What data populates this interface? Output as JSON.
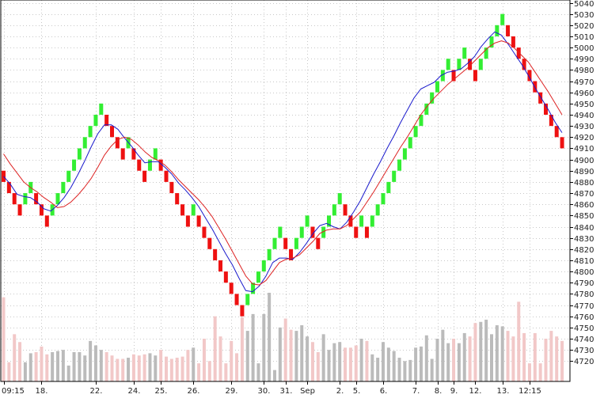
{
  "chart_data": {
    "type": "renko",
    "title": "",
    "xlabel": "",
    "ylabel": "",
    "ylim": [
      4710,
      5040
    ],
    "y_ticks": [
      4720,
      4730,
      4740,
      4750,
      4760,
      4770,
      4780,
      4790,
      4800,
      4810,
      4820,
      4830,
      4840,
      4850,
      4860,
      4870,
      4880,
      4890,
      4900,
      4910,
      4920,
      4930,
      4940,
      4950,
      4960,
      4970,
      4980,
      4990,
      5000,
      5010,
      5020,
      5030,
      5040
    ],
    "x_tick_labels": [
      "09:15",
      "18.",
      "22.",
      "24.",
      "25.",
      "26.",
      "29.",
      "30.",
      "31.",
      "Sep",
      "2.",
      "5.",
      "6.",
      "7.",
      "8.",
      "9.",
      "12.",
      "13.",
      "12:15"
    ],
    "x_tick_bricks": [
      0,
      7,
      17,
      24,
      29,
      35,
      42,
      48,
      52,
      56,
      62,
      65,
      70,
      76,
      80,
      83,
      87,
      92,
      97
    ],
    "grid": true,
    "brick_size": 10,
    "colors": {
      "up": "#33ee33",
      "down": "#ee1111",
      "ma_fast": "#1a1acc",
      "ma_slow": "#dd2222",
      "volume": "#bbbbbb",
      "volume_light": "#f2c8c8"
    },
    "series": [
      {
        "type": "renko",
        "brick_bottoms": [
          4880,
          4870,
          4860,
          4850,
          4860,
          4870,
          4860,
          4850,
          4840,
          4850,
          4860,
          4870,
          4880,
          4890,
          4900,
          4910,
          4920,
          4930,
          4940,
          4930,
          4920,
          4910,
          4900,
          4910,
          4900,
          4890,
          4880,
          4890,
          4900,
          4890,
          4880,
          4870,
          4860,
          4850,
          4840,
          4850,
          4840,
          4830,
          4820,
          4810,
          4800,
          4790,
          4780,
          4770,
          4760,
          4770,
          4780,
          4790,
          4800,
          4810,
          4820,
          4830,
          4820,
          4810,
          4820,
          4830,
          4840,
          4830,
          4820,
          4830,
          4840,
          4850,
          4860,
          4850,
          4840,
          4830,
          4840,
          4830,
          4840,
          4850,
          4860,
          4870,
          4880,
          4890,
          4900,
          4910,
          4920,
          4930,
          4940,
          4950,
          4960,
          4970,
          4980,
          4970,
          4980,
          4990,
          4980,
          4970,
          4980,
          4990,
          5000,
          5010,
          5020,
          5010,
          5000,
          4990,
          4980,
          4970,
          4960,
          4950,
          4940,
          4930,
          4920,
          4910
        ]
      },
      {
        "type": "line",
        "name": "",
        "color": "#1a1acc",
        "values": [
          4885,
          4878,
          4869,
          4867,
          4866,
          4862,
          4856,
          4854,
          4859,
          4866,
          4875,
          4886,
          4898,
          4911,
          4923,
          4931,
          4931,
          4927,
          4919,
          4912,
          4904,
          4897,
          4898,
          4898,
          4893,
          4887,
          4879,
          4873,
          4866,
          4858,
          4848,
          4838,
          4827,
          4816,
          4806,
          4794,
          4783,
          4782,
          4787,
          4796,
          4808,
          4812,
          4812,
          4811,
          4817,
          4825,
          4834,
          4841,
          4843,
          4840,
          4838,
          4844,
          4853,
          4863,
          4875,
          4887,
          4898,
          4910,
          4921,
          4933,
          4944,
          4955,
          4963,
          4966,
          4969,
          4975,
          4978,
          4979,
          4981,
          4986,
          4992,
          5001,
          5008,
          5014,
          5011,
          5003,
          4994,
          4985,
          4975,
          4964,
          4954,
          4944,
          4933,
          4924
        ]
      },
      {
        "type": "line",
        "name": "",
        "color": "#dd2222",
        "values": [
          4905,
          4896,
          4888,
          4880,
          4875,
          4871,
          4866,
          4862,
          4857,
          4858,
          4862,
          4868,
          4875,
          4883,
          4893,
          4904,
          4912,
          4918,
          4920,
          4918,
          4913,
          4907,
          4902,
          4899,
          4895,
          4889,
          4882,
          4876,
          4870,
          4864,
          4857,
          4849,
          4839,
          4829,
          4818,
          4807,
          4796,
          4789,
          4788,
          4792,
          4800,
          4808,
          4811,
          4812,
          4815,
          4821,
          4827,
          4834,
          4837,
          4838,
          4838,
          4841,
          4847,
          4853,
          4862,
          4871,
          4881,
          4891,
          4901,
          4911,
          4920,
          4930,
          4940,
          4948,
          4955,
          4961,
          4967,
          4972,
          4977,
          4982,
          4988,
          4994,
          5000,
          5004,
          5006,
          5004,
          4999,
          4993,
          4987,
          4978,
          4969,
          4960,
          4950,
          4940
        ]
      },
      {
        "type": "bar",
        "name": "",
        "values": [
          4777,
          4719,
          4744,
          4737,
          4719,
          4727,
          4728,
          4733,
          4726,
          4728,
          4729,
          4730,
          4716,
          4728,
          4728,
          4725,
          4738,
          4734,
          4730,
          4728,
          4725,
          4722,
          4722,
          4723,
          4726,
          4725,
          4726,
          4727,
          4725,
          4730,
          4724,
          4722,
          4723,
          4724,
          4730,
          4732,
          4718,
          4740,
          4720,
          4760,
          4742,
          4718,
          4738,
          4727,
          4759,
          4747,
          4762,
          4718,
          4762,
          4781,
          4712,
          4750,
          4758,
          4748,
          4747,
          4752,
          4742,
          4737,
          4728,
          4744,
          4730,
          4736,
          4737,
          4732,
          4732,
          4734,
          4740,
          4738,
          4726,
          4723,
          4737,
          4732,
          4729,
          4723,
          4720,
          4721,
          4732,
          4733,
          4743,
          4722,
          4740,
          4748,
          4736,
          4740,
          4736,
          4745,
          4742,
          4754,
          4755,
          4757,
          4744,
          4752,
          4751,
          4747,
          4742,
          4773,
          4745,
          4718,
          4745,
          4718,
          4740,
          4747,
          4742,
          4738
        ]
      }
    ]
  }
}
